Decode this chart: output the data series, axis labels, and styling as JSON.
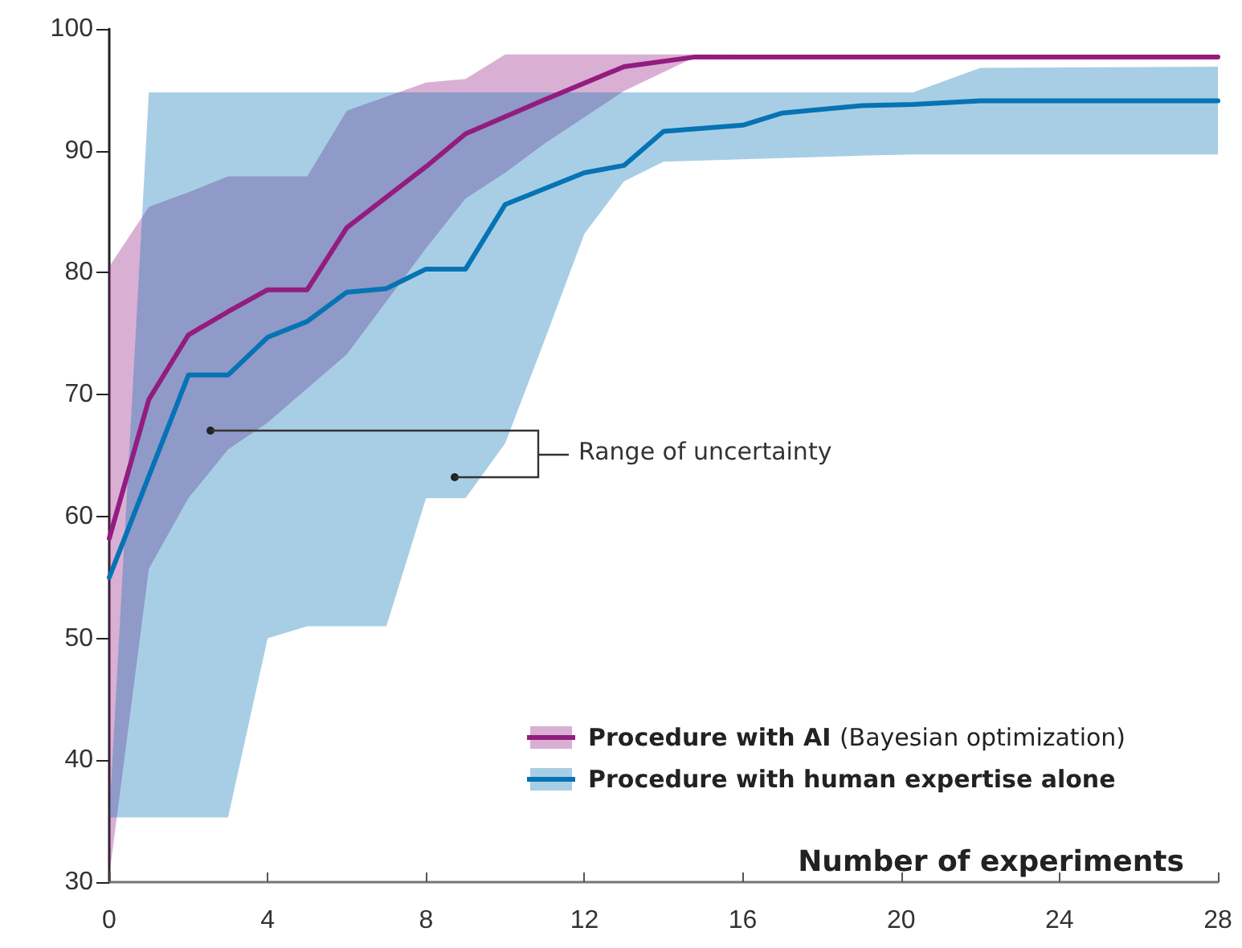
{
  "chart_data": {
    "type": "line",
    "xlabel": "Number of experiments",
    "annotations": [
      "Range of uncertainty"
    ],
    "series": [
      {
        "name": "Procedure with AI (Bayesian optimization)",
        "color": "#931c80",
        "x": [
          0,
          1,
          2,
          3,
          4,
          5,
          6,
          8,
          9,
          10,
          11,
          13,
          14.8,
          28
        ],
        "values": [
          58.2,
          69.6,
          74.9,
          76.8,
          78.6,
          78.6,
          83.7,
          88.7,
          91.4,
          92.8,
          94.2,
          96.9,
          97.7,
          97.7
        ],
        "upper": [
          80.5,
          85.4,
          86.6,
          87.9,
          87.9,
          87.9,
          93.3,
          95.6,
          95.9,
          97.9,
          97.9,
          97.9,
          97.9,
          97.7
        ],
        "lower": [
          30.5,
          55.7,
          61.5,
          65.5,
          67.7,
          70.5,
          73.3,
          82,
          86.1,
          88.2,
          90.6,
          94.9,
          97.7,
          97.7
        ]
      },
      {
        "name": "Procedure with human expertise alone",
        "color": "#0673b4",
        "x": [
          0,
          1,
          2,
          3,
          4,
          5,
          6,
          7,
          8,
          9,
          10,
          11,
          12,
          13,
          14,
          16,
          17,
          19,
          20.3,
          22,
          28
        ],
        "values": [
          55,
          63.3,
          71.6,
          71.6,
          74.7,
          76,
          78.4,
          78.7,
          80.3,
          80.3,
          85.6,
          86.9,
          88.2,
          88.8,
          91.6,
          92.1,
          93.1,
          93.7,
          93.8,
          94.1,
          94.1
        ],
        "upper": [
          35.3,
          94.8,
          94.8,
          94.8,
          94.8,
          94.8,
          94.8,
          94.8,
          94.8,
          94.8,
          94.8,
          94.8,
          94.8,
          94.8,
          94.8,
          94.8,
          94.8,
          94.8,
          94.8,
          96.8,
          96.9
        ],
        "lower": [
          35.3,
          35.3,
          35.3,
          35.3,
          50,
          51,
          51,
          51,
          61.5,
          61.5,
          66,
          74.5,
          83.2,
          87.5,
          89.1,
          89.3,
          89.4,
          89.6,
          89.7,
          89.7,
          89.7
        ]
      }
    ],
    "xlim": [
      0,
      28
    ],
    "xticks": [
      0,
      4,
      8,
      12,
      16,
      20,
      24,
      28
    ],
    "ylim": [
      30,
      100
    ],
    "yticks": [
      30,
      40,
      50,
      60,
      70,
      80,
      90,
      100
    ],
    "grid": false,
    "legend": "bottom right",
    "marker": "none",
    "line_style": "solid"
  }
}
